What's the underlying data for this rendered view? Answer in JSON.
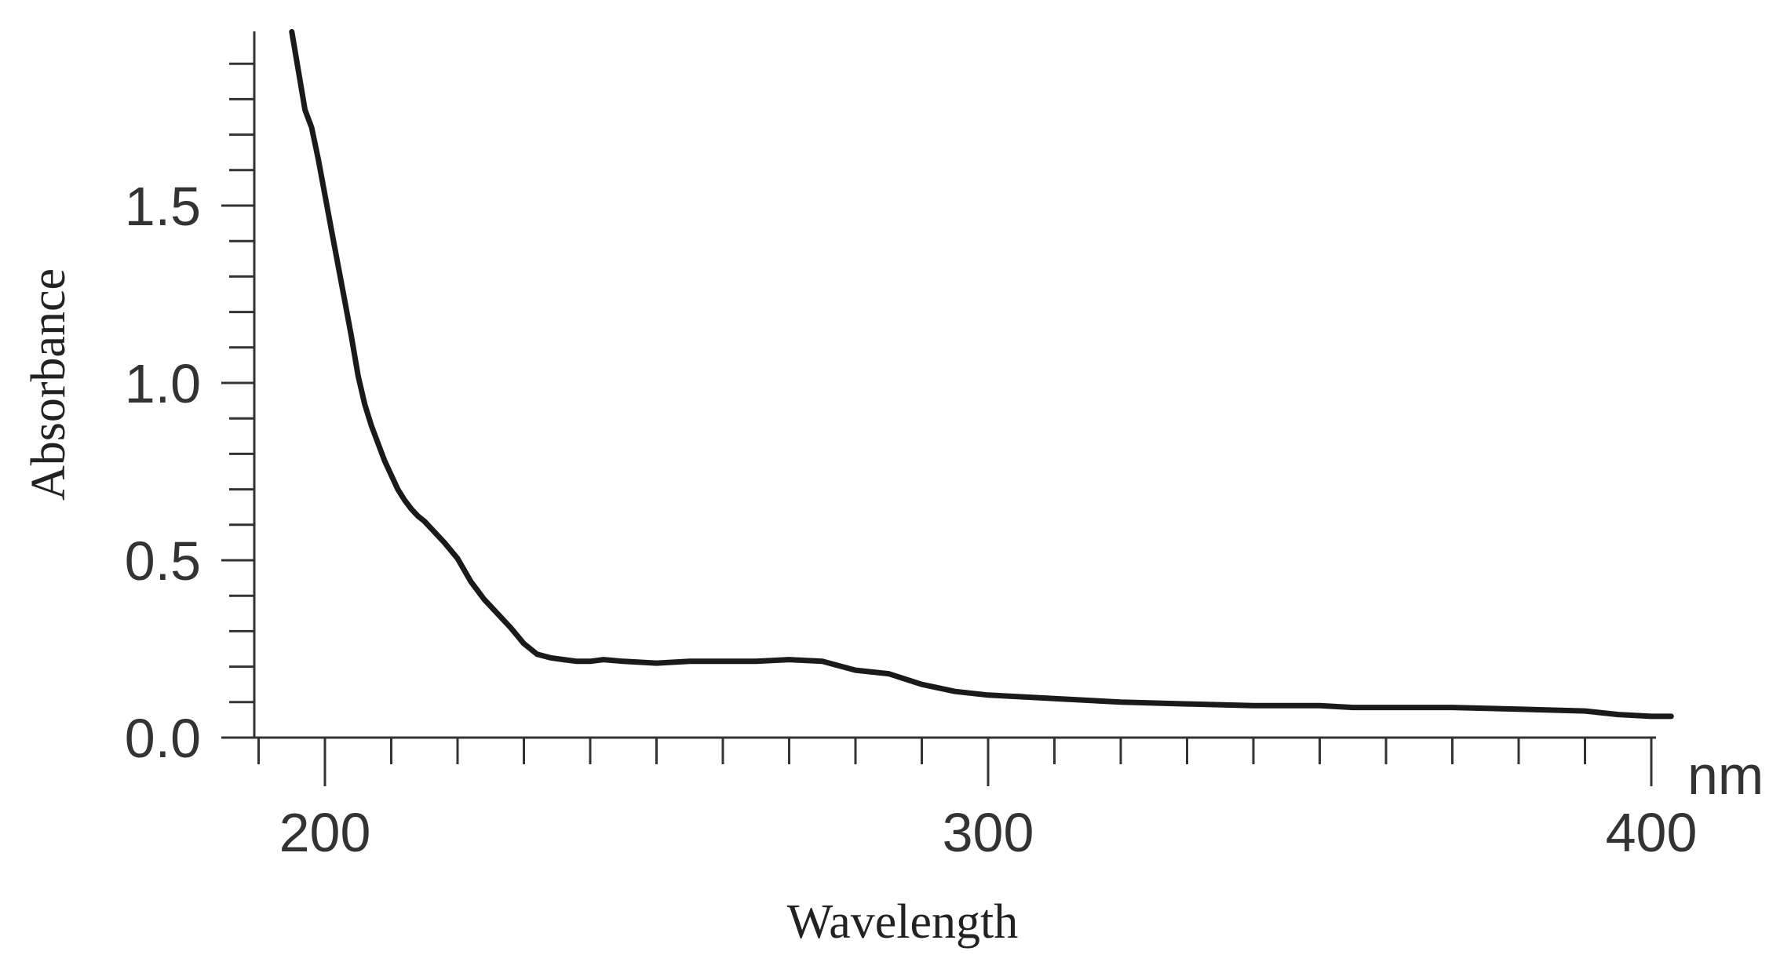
{
  "chart_data": {
    "type": "line",
    "xlabel": "Wavelength",
    "ylabel": "Absorbance",
    "x_unit": "nm",
    "xlim": [
      190,
      400
    ],
    "ylim": [
      0,
      2.0
    ],
    "x_ticks": [
      200,
      300,
      400
    ],
    "y_ticks": [
      0.0,
      0.5,
      1.0,
      1.5
    ],
    "x_tick_labels": [
      "200",
      "300",
      "400"
    ],
    "y_tick_labels": [
      "0.0",
      "0.5",
      "1.0",
      "1.5"
    ],
    "x_minor_step": 10,
    "y_minor_step": 0.1,
    "grid": false,
    "series": [
      {
        "x": [
          195,
          196,
          197,
          198,
          199,
          200,
          201,
          202,
          203,
          204,
          205,
          206,
          207,
          208,
          209,
          210,
          211,
          212,
          213,
          214,
          215,
          216,
          218,
          220,
          222,
          224,
          226,
          228,
          230,
          232,
          234,
          236,
          238,
          240,
          242,
          245,
          250,
          255,
          260,
          265,
          270,
          275,
          280,
          285,
          290,
          295,
          300,
          305,
          310,
          315,
          320,
          330,
          340,
          350,
          355,
          360,
          370,
          380,
          390,
          395,
          400,
          403
        ],
        "y": [
          1.99,
          1.88,
          1.77,
          1.72,
          1.63,
          1.53,
          1.43,
          1.33,
          1.23,
          1.13,
          1.02,
          0.94,
          0.88,
          0.83,
          0.78,
          0.74,
          0.7,
          0.67,
          0.645,
          0.625,
          0.61,
          0.59,
          0.55,
          0.505,
          0.44,
          0.39,
          0.35,
          0.31,
          0.265,
          0.235,
          0.225,
          0.22,
          0.215,
          0.215,
          0.22,
          0.215,
          0.21,
          0.215,
          0.215,
          0.215,
          0.22,
          0.215,
          0.19,
          0.18,
          0.15,
          0.13,
          0.12,
          0.115,
          0.11,
          0.105,
          0.1,
          0.095,
          0.09,
          0.09,
          0.085,
          0.085,
          0.085,
          0.08,
          0.075,
          0.065,
          0.06,
          0.06
        ]
      }
    ]
  }
}
